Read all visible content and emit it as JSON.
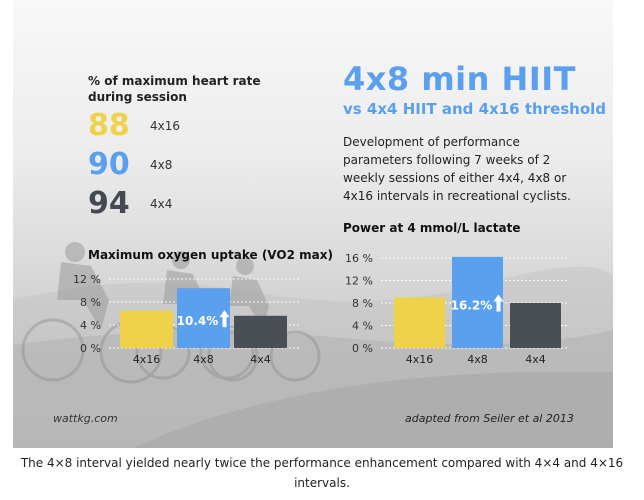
{
  "heart_rate": {
    "label": "% of maximum heart rate during session",
    "rows": [
      {
        "value": "88",
        "tag": "4x16",
        "color": "#f0d24a"
      },
      {
        "value": "90",
        "tag": "4x8",
        "color": "#5aa0ee"
      },
      {
        "value": "94",
        "tag": "4x4",
        "color": "#454a52"
      }
    ]
  },
  "header": {
    "title": "4x8 min HIIT",
    "subtitle": "vs 4x4 HIIT and 4x16 threshold",
    "description": "Development of performance parameters following 7 weeks of 2 weekly sessions of either 4x4, 4x8 or 4x16 intervals in recreational cyclists."
  },
  "colors": {
    "yellow": "#f0d24a",
    "blue": "#5aa0ee",
    "dark": "#4a4e55",
    "grid": "#ffffff"
  },
  "chart_data": [
    {
      "type": "bar",
      "title": "Maximum oxygen uptake (VO2 max)",
      "categories": [
        "4x16",
        "4x8",
        "4x4"
      ],
      "values": [
        6.5,
        10.4,
        5.6
      ],
      "data_labels": [
        "",
        "10.4%",
        ""
      ],
      "yticks": [
        "0 %",
        "4 %",
        "8 %",
        "12 %"
      ],
      "ylim": [
        0,
        12
      ],
      "grid": true
    },
    {
      "type": "bar",
      "title": "Power at 4 mmol/L lactate",
      "categories": [
        "4x16",
        "4x8",
        "4x4"
      ],
      "values": [
        9.0,
        16.2,
        8.0
      ],
      "data_labels": [
        "",
        "16.2%",
        ""
      ],
      "yticks": [
        "0 %",
        "4 %",
        "8 %",
        "12 %",
        "16 %"
      ],
      "ylim": [
        0,
        16
      ],
      "grid": true
    }
  ],
  "credits": {
    "left": "wattkg.com",
    "right": "adapted from Seiler et al 2013"
  },
  "caption": "The 4×8 interval yielded nearly twice the performance enhancement compared with 4×4 and 4×16 intervals."
}
